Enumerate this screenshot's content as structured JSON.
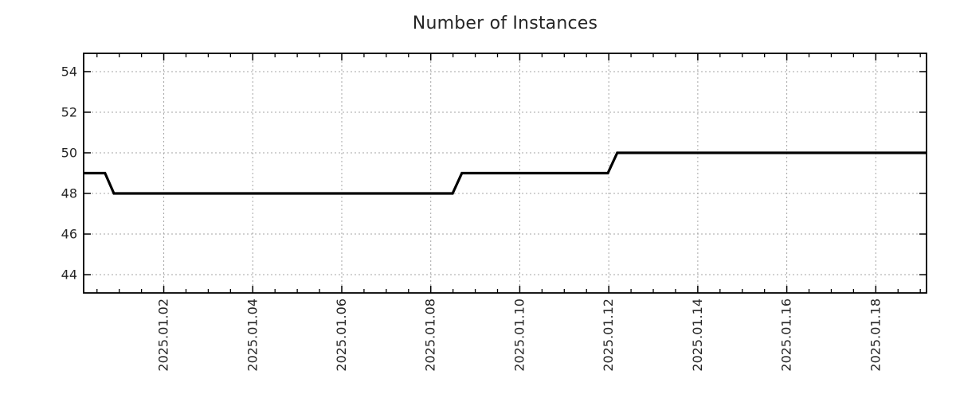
{
  "chart_data": {
    "type": "line",
    "title": "Number of Instances",
    "xlabel": "",
    "ylabel": "",
    "x_unit": "date, fractional day of January 2025 (0.2 = 2024-12-31 ~05:00)",
    "xlim": [
      0.2,
      19.14
    ],
    "ylim": [
      43.1,
      54.9
    ],
    "grid": true,
    "legend": null,
    "x_ticks": [
      {
        "value": 2,
        "label": "2025.01.02"
      },
      {
        "value": 4,
        "label": "2025.01.04"
      },
      {
        "value": 6,
        "label": "2025.01.06"
      },
      {
        "value": 8,
        "label": "2025.01.08"
      },
      {
        "value": 10,
        "label": "2025.01.10"
      },
      {
        "value": 12,
        "label": "2025.01.12"
      },
      {
        "value": 14,
        "label": "2025.01.14"
      },
      {
        "value": 16,
        "label": "2025.01.16"
      },
      {
        "value": 18,
        "label": "2025.01.18"
      }
    ],
    "x_minor_step": 0.5,
    "y_ticks": [
      {
        "value": 44,
        "label": "44"
      },
      {
        "value": 46,
        "label": "46"
      },
      {
        "value": 48,
        "label": "48"
      },
      {
        "value": 50,
        "label": "50"
      },
      {
        "value": 52,
        "label": "52"
      },
      {
        "value": 54,
        "label": "54"
      }
    ],
    "series": [
      {
        "name": "instances",
        "points": [
          [
            0.2,
            49
          ],
          [
            0.68,
            49
          ],
          [
            0.88,
            48
          ],
          [
            8.49,
            48
          ],
          [
            8.7,
            49
          ],
          [
            11.98,
            49
          ],
          [
            12.19,
            50
          ],
          [
            19.14,
            50
          ]
        ]
      }
    ]
  },
  "colors": {
    "line": "#000000",
    "grid": "#a6a6a6",
    "axis": "#000000",
    "text": "#262626",
    "background": "#ffffff"
  }
}
